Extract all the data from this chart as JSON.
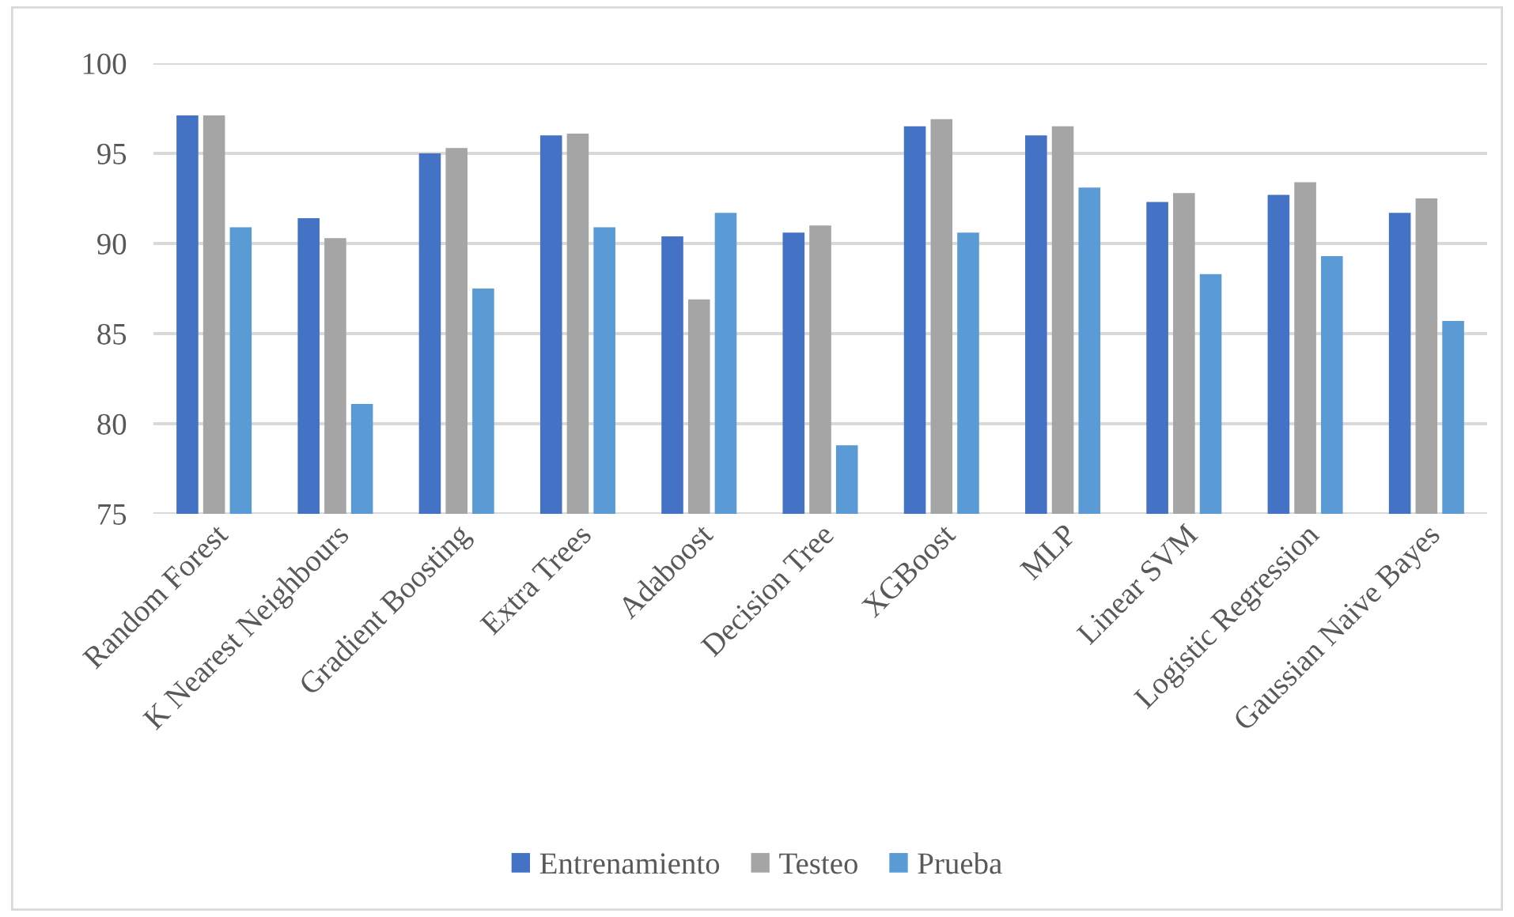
{
  "chart_data": {
    "type": "bar",
    "categories": [
      "Random Forest",
      "K Nearest Neighbours",
      "Gradient Boosting",
      "Extra Trees",
      "Adaboost",
      "Decision Tree",
      "XGBoost",
      "MLP",
      "Linear SVM",
      "Logistic Regression",
      "Gaussian Naive Bayes"
    ],
    "series": [
      {
        "name": "Entrenamiento",
        "color": "#4472c4",
        "values": [
          97.1,
          91.4,
          95.0,
          96.0,
          90.4,
          90.6,
          96.5,
          96.0,
          92.3,
          92.7,
          91.7
        ]
      },
      {
        "name": "Testeo",
        "color": "#a5a5a5",
        "values": [
          97.1,
          90.3,
          95.3,
          96.1,
          86.9,
          91.0,
          96.9,
          96.5,
          92.8,
          93.4,
          92.5
        ]
      },
      {
        "name": "Prueba",
        "color": "#5b9bd5",
        "values": [
          90.9,
          81.1,
          87.5,
          90.9,
          91.7,
          78.8,
          90.6,
          93.1,
          88.3,
          89.3,
          85.7
        ]
      }
    ],
    "ylim": [
      75,
      100
    ],
    "yticks": [
      75,
      80,
      85,
      90,
      95,
      100
    ],
    "grid": "y",
    "legend": "bottom"
  }
}
